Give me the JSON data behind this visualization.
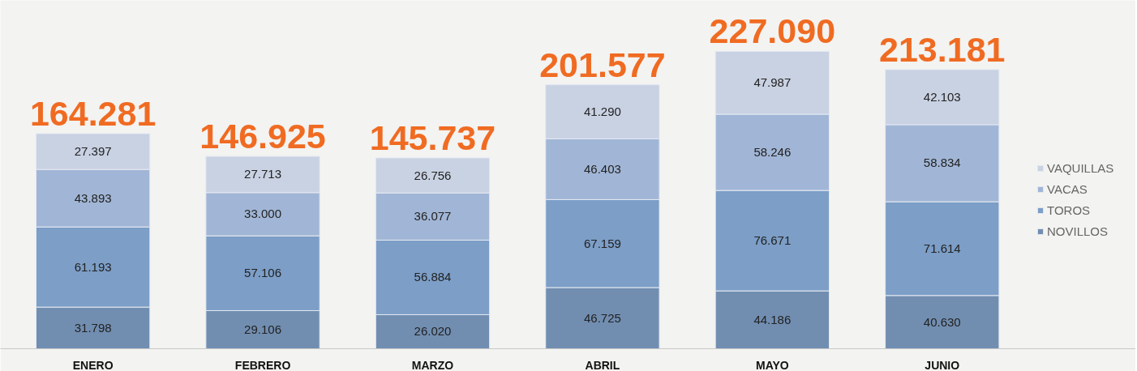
{
  "chart_data": {
    "type": "bar",
    "stacked": true,
    "categories": [
      "ENERO",
      "FEBRERO",
      "MARZO",
      "ABRIL",
      "MAYO",
      "JUNIO"
    ],
    "series": [
      {
        "name": "NOVILLOS",
        "color": "#718eb1",
        "values": [
          31798,
          29106,
          26020,
          46725,
          44186,
          40630
        ],
        "value_labels": [
          "31.798",
          "29.106",
          "26.020",
          "46.725",
          "44.186",
          "40.630"
        ]
      },
      {
        "name": "TOROS",
        "color": "#7c9ec7",
        "values": [
          61193,
          57106,
          56884,
          67159,
          76671,
          71614
        ],
        "value_labels": [
          "61.193",
          "57.106",
          "56.884",
          "67.159",
          "76.671",
          "71.614"
        ]
      },
      {
        "name": "VACAS",
        "color": "#a1b6d6",
        "values": [
          43893,
          33000,
          36077,
          46403,
          58246,
          58834
        ],
        "value_labels": [
          "43.893",
          "33.000",
          "36.077",
          "46.403",
          "58.246",
          "58.834"
        ]
      },
      {
        "name": "VAQUILLAS",
        "color": "#c9d2e3",
        "values": [
          27397,
          27713,
          26756,
          41290,
          47987,
          42103
        ],
        "value_labels": [
          "27.397",
          "27.713",
          "26.756",
          "41.290",
          "47.987",
          "42.103"
        ]
      }
    ],
    "totals": [
      "164.281",
      "146.925",
      "145.737",
      "201.577",
      "227.090",
      "213.181"
    ],
    "ylim": [
      0,
      266000
    ],
    "tick_labels": "x",
    "grid": false,
    "legend": "right"
  }
}
